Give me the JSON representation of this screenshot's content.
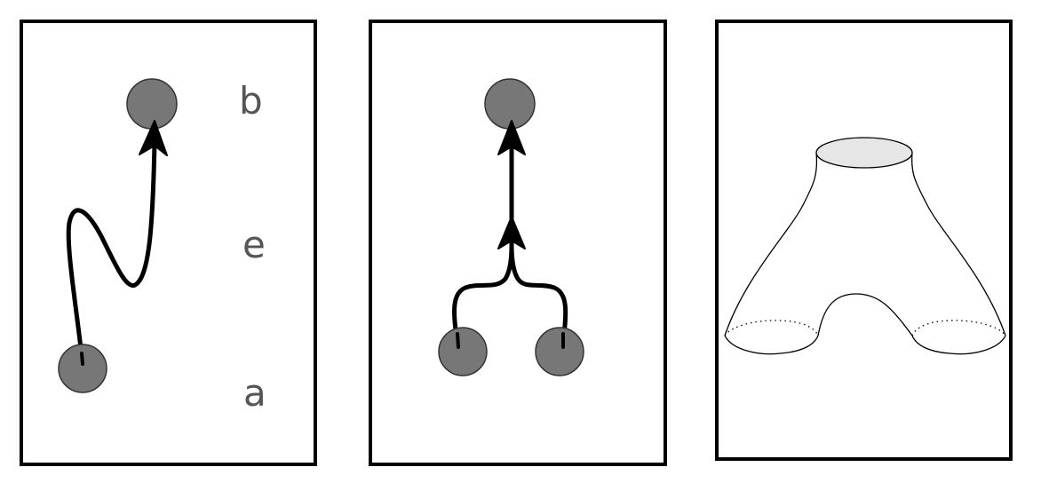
{
  "labels": {
    "b": "b",
    "e": "e",
    "a": "a"
  },
  "colors": {
    "border": "#000000",
    "node_fill": "#777777",
    "node_stroke": "#333333",
    "path": "#000000",
    "label_text": "#555555",
    "cap_fill": "#e6e6e6",
    "surface_stroke": "#000000"
  }
}
